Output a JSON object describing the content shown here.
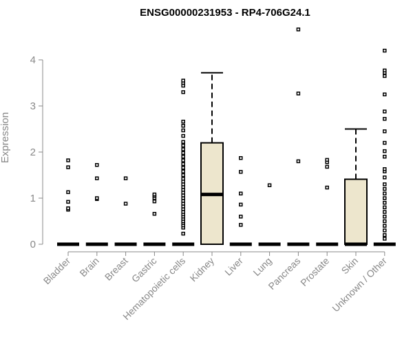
{
  "chart_data": {
    "type": "boxplot",
    "title": "ENSG00000231953 - RP4-706G24.1",
    "ylabel": "Expression",
    "ylim": [
      0,
      4.7
    ],
    "yticks": [
      0,
      1,
      2,
      3,
      4
    ],
    "categories": [
      "Bladder",
      "Brain",
      "Breast",
      "Gastric",
      "Hematopoietic cells",
      "Kidney",
      "Liver",
      "Lung",
      "Pancreas",
      "Prostate",
      "Skin",
      "Unknown / Other"
    ],
    "box_fill": "#ede6cd",
    "boxes": [
      {
        "q1": 0,
        "median": 0,
        "q3": 0,
        "whisker_low": 0,
        "whisker_high": 0,
        "outliers": [
          0.75,
          0.78,
          0.92,
          1.13,
          1.67,
          1.82
        ]
      },
      {
        "q1": 0,
        "median": 0,
        "q3": 0,
        "whisker_low": 0,
        "whisker_high": 0,
        "outliers": [
          0.98,
          1.0,
          1.43,
          1.72
        ]
      },
      {
        "q1": 0,
        "median": 0,
        "q3": 0,
        "whisker_low": 0,
        "whisker_high": 0,
        "outliers": [
          0.88,
          1.43
        ]
      },
      {
        "q1": 0,
        "median": 0,
        "q3": 0,
        "whisker_low": 0,
        "whisker_high": 0,
        "outliers": [
          0.66,
          0.93,
          1.0,
          1.05,
          1.08
        ]
      },
      {
        "q1": 0,
        "median": 0,
        "q3": 0,
        "whisker_low": 0,
        "whisker_high": 0,
        "outliers": [
          0.23,
          0.36,
          0.41,
          0.46,
          0.5,
          0.55,
          0.6,
          0.65,
          0.7,
          0.76,
          0.82,
          0.88,
          0.94,
          1.0,
          1.06,
          1.12,
          1.18,
          1.24,
          1.3,
          1.36,
          1.42,
          1.5,
          1.58,
          1.66,
          1.74,
          1.82,
          1.9,
          1.98,
          2.06,
          2.14,
          2.22,
          2.35,
          2.47,
          2.57,
          2.66,
          3.3,
          3.44,
          3.5,
          3.55
        ]
      },
      {
        "q1": 0,
        "median": 1.08,
        "q3": 2.2,
        "whisker_low": 0,
        "whisker_high": 3.72,
        "outliers": []
      },
      {
        "q1": 0,
        "median": 0,
        "q3": 0,
        "whisker_low": 0,
        "whisker_high": 0,
        "outliers": [
          0.42,
          0.6,
          0.86,
          1.1,
          1.57,
          1.87
        ]
      },
      {
        "q1": 0,
        "median": 0,
        "q3": 0,
        "whisker_low": 0,
        "whisker_high": 0,
        "outliers": [
          1.28
        ]
      },
      {
        "q1": 0,
        "median": 0,
        "q3": 0,
        "whisker_low": 0,
        "whisker_high": 0,
        "outliers": [
          1.8,
          3.27,
          4.66
        ]
      },
      {
        "q1": 0,
        "median": 0,
        "q3": 0,
        "whisker_low": 0,
        "whisker_high": 0,
        "outliers": [
          1.23,
          1.68,
          1.78,
          1.83
        ]
      },
      {
        "q1": 0,
        "median": 0,
        "q3": 1.41,
        "whisker_low": 0,
        "whisker_high": 2.5,
        "outliers": []
      },
      {
        "q1": 0,
        "median": 0,
        "q3": 0,
        "whisker_low": 0,
        "whisker_high": 0,
        "outliers": [
          0.12,
          0.2,
          0.3,
          0.4,
          0.5,
          0.6,
          0.7,
          0.8,
          0.9,
          1.0,
          1.1,
          1.2,
          1.3,
          1.45,
          1.58,
          1.63,
          1.9,
          2.02,
          2.2,
          2.45,
          2.72,
          2.88,
          3.25,
          3.65,
          3.72,
          3.77,
          4.2
        ]
      }
    ]
  }
}
